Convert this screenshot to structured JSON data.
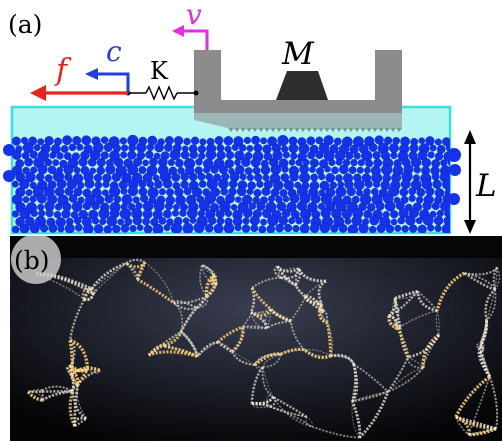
{
  "panel_a": {
    "panel_label": "(a)",
    "symbols": {
      "f": "f",
      "c": "c",
      "v": "v",
      "K": "K",
      "M": "M",
      "L": "L"
    }
  },
  "panel_b": {
    "panel_label": "(b)"
  },
  "colors": {
    "force_arrow": "#e3241b",
    "c_arrow": "#1f3fd6",
    "v_arrow": "#e62ee0",
    "slider": "#8c8c8c",
    "mass": "#2e2e2e",
    "granular_box_fill": "#b3f5f2",
    "granular_box_stroke": "#35e0dd",
    "disks": "#1432ea",
    "photo_background": "#0b0b0d",
    "force_chain_light": "#fff1c6"
  }
}
